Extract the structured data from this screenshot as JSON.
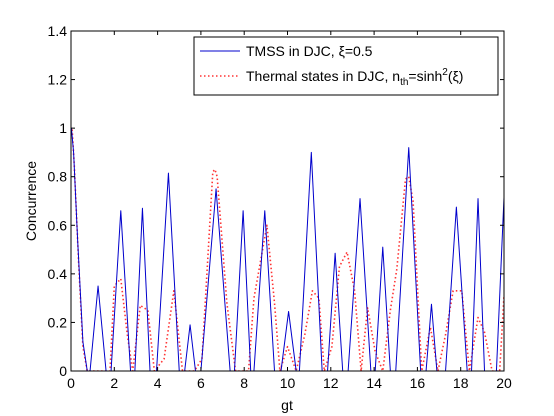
{
  "chart_data": {
    "type": "line",
    "title": "",
    "xlabel": "gt",
    "ylabel": "Concurrence",
    "xlim": [
      0,
      20
    ],
    "ylim": [
      0,
      1.4
    ],
    "grid": false,
    "legend_position": "top-right",
    "xticks": [
      "0",
      "2",
      "4",
      "6",
      "8",
      "10",
      "12",
      "14",
      "16",
      "18",
      "20"
    ],
    "yticks": [
      "0",
      "0.2",
      "0.4",
      "0.6",
      "0.8",
      "1",
      "1.2",
      "1.4"
    ],
    "series": [
      {
        "name": "TMSS in DJC, ξ=0.5",
        "legend": {
          "main": "TMSS in DJC, ξ=0.5"
        },
        "color": "#0000cc",
        "style": "solid",
        "x": [
          0.0,
          0.02,
          0.12,
          0.3,
          0.55,
          0.75,
          0.88,
          1.25,
          1.62,
          1.85,
          2.3,
          2.75,
          2.95,
          3.3,
          3.65,
          3.95,
          4.5,
          5.0,
          5.25,
          5.5,
          5.75,
          6.0,
          6.7,
          7.35,
          7.55,
          7.95,
          8.3,
          8.45,
          8.95,
          9.4,
          9.7,
          10.05,
          10.4,
          10.55,
          11.1,
          11.6,
          11.85,
          12.2,
          12.55,
          12.8,
          13.35,
          13.85,
          14.05,
          14.4,
          14.75,
          15.0,
          15.6,
          16.15,
          16.4,
          16.65,
          16.9,
          17.3,
          17.8,
          18.3,
          18.5,
          18.8,
          19.1,
          19.3,
          19.65,
          20.0
        ],
        "y": [
          0.99,
          1.0,
          0.9,
          0.55,
          0.12,
          0.0,
          0.0,
          0.35,
          0.0,
          0.0,
          0.66,
          0.0,
          0.0,
          0.67,
          0.0,
          0.0,
          0.815,
          0.0,
          0.0,
          0.19,
          0.0,
          0.0,
          0.75,
          0.0,
          0.0,
          0.66,
          0.0,
          0.0,
          0.66,
          0.0,
          0.0,
          0.245,
          0.0,
          0.0,
          0.9,
          0.0,
          0.0,
          0.485,
          0.0,
          0.0,
          0.71,
          0.0,
          0.0,
          0.51,
          0.0,
          0.0,
          0.92,
          0.0,
          0.0,
          0.275,
          0.0,
          0.0,
          0.675,
          0.0,
          0.0,
          0.71,
          0.0,
          0.0,
          0.0,
          0.715
        ]
      },
      {
        "name": "Thermal states in DJC, n_th=sinh²(ξ)",
        "legend": {
          "main": "Thermal states in DJC, n",
          "sub": "th",
          "mid": "=sinh",
          "sup": "2",
          "end": "(ξ)"
        },
        "color": "#ff3333",
        "style": "dotted",
        "x": [
          0.0,
          0.05,
          0.15,
          0.35,
          0.55,
          0.75,
          1.4,
          1.8,
          2.0,
          2.3,
          2.6,
          2.85,
          3.2,
          3.55,
          3.85,
          4.3,
          4.75,
          5.15,
          5.7,
          6.05,
          6.55,
          6.65,
          6.75,
          7.2,
          7.6,
          8.2,
          8.45,
          8.75,
          9.05,
          9.4,
          9.65,
          10.0,
          10.4,
          10.8,
          11.15,
          11.45,
          11.7,
          12.05,
          12.4,
          12.75,
          13.1,
          13.4,
          13.7,
          14.05,
          14.4,
          14.75,
          15.05,
          15.45,
          15.6,
          15.8,
          16.2,
          16.6,
          16.95,
          17.3,
          17.65,
          18.05,
          18.4,
          18.8,
          19.1,
          19.45,
          19.8,
          20.0
        ],
        "y": [
          0.99,
          1.0,
          0.85,
          0.45,
          0.1,
          0.0,
          0.0,
          0.0,
          0.35,
          0.38,
          0.15,
          0.0,
          0.27,
          0.25,
          0.0,
          0.05,
          0.33,
          0.0,
          0.0,
          0.05,
          0.82,
          0.83,
          0.8,
          0.28,
          0.0,
          0.0,
          0.3,
          0.45,
          0.6,
          0.28,
          0.0,
          0.1,
          0.0,
          0.15,
          0.33,
          0.3,
          0.0,
          0.1,
          0.43,
          0.49,
          0.33,
          0.0,
          0.26,
          0.08,
          0.0,
          0.25,
          0.42,
          0.79,
          0.8,
          0.7,
          0.0,
          0.18,
          0.0,
          0.15,
          0.33,
          0.33,
          0.0,
          0.22,
          0.16,
          0.0,
          0.0,
          0.31
        ]
      }
    ]
  }
}
